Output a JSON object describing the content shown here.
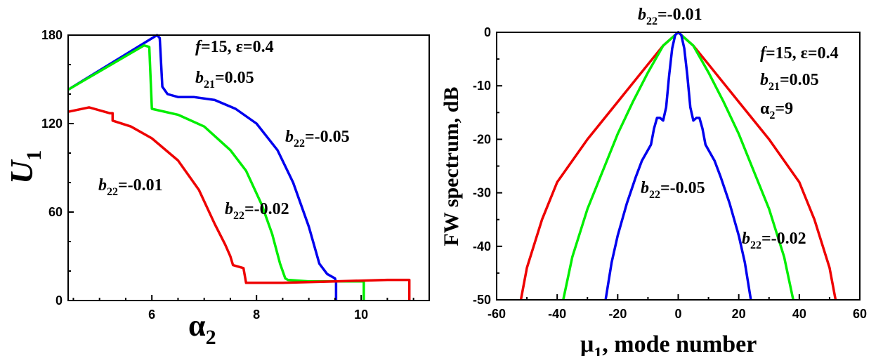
{
  "chart_data": [
    {
      "type": "line",
      "xlim": [
        4.4,
        11.3
      ],
      "ylim": [
        0,
        180
      ],
      "x_ticks": [
        6,
        8,
        10
      ],
      "y_ticks": [
        0,
        60,
        120,
        180
      ],
      "xlabel": "α₂",
      "ylabel": "U₁",
      "annotations": [
        "f=15, ε=0.4",
        "b21=0.05"
      ],
      "series": [
        {
          "name": "b22=-0.05",
          "color": "#0000ee",
          "x": [
            4.4,
            6.1,
            6.15,
            6.2,
            6.3,
            6.5,
            6.8,
            7.2,
            7.6,
            8.0,
            8.4,
            8.7,
            9.0,
            9.2,
            9.35,
            9.5,
            9.52,
            9.52
          ],
          "y": [
            143,
            180,
            178,
            145,
            140,
            138,
            138,
            136,
            130,
            120,
            102,
            80,
            50,
            25,
            18,
            15,
            12,
            0
          ]
        },
        {
          "name": "b22=-0.02",
          "color": "#00ee00",
          "x": [
            4.4,
            5.85,
            5.95,
            6.0,
            6.5,
            7.0,
            7.5,
            7.8,
            8.1,
            8.3,
            8.45,
            8.55,
            8.6,
            9.0,
            9.5,
            10.0,
            10.05,
            10.05
          ],
          "y": [
            143,
            173,
            172,
            130,
            126,
            118,
            102,
            88,
            65,
            45,
            25,
            15,
            14,
            13,
            13,
            13,
            13,
            0
          ]
        },
        {
          "name": "b22=-0.01",
          "color": "#ee0000",
          "x": [
            4.4,
            4.8,
            5.2,
            5.25,
            5.25,
            5.6,
            6.0,
            6.5,
            6.9,
            7.2,
            7.4,
            7.5,
            7.55,
            7.75,
            7.8,
            8.5,
            9.5,
            10.5,
            10.9,
            10.92,
            10.92
          ],
          "y": [
            128,
            131,
            127,
            127,
            122,
            118,
            110,
            95,
            75,
            52,
            38,
            30,
            24,
            22,
            12,
            12,
            13,
            14,
            14,
            14,
            0
          ]
        }
      ]
    },
    {
      "type": "line",
      "xlim": [
        -60,
        60
      ],
      "ylim": [
        -50,
        0
      ],
      "x_ticks": [
        -60,
        -40,
        -20,
        0,
        20,
        40,
        60
      ],
      "y_ticks": [
        0,
        -10,
        -20,
        -30,
        -40,
        -50
      ],
      "xlabel": "μ₁, mode number",
      "ylabel": "FW spectrum, dB",
      "annotations": [
        "b22=-0.01",
        "f=15, ε=0.4",
        "b21=0.05",
        "α2=9"
      ],
      "series": [
        {
          "name": "b22=-0.01",
          "color": "#ee0000",
          "x": [
            -52,
            -50,
            -45,
            -40,
            -30,
            -20,
            -10,
            -5,
            0,
            5,
            10,
            20,
            30,
            40,
            45,
            50,
            52
          ],
          "y": [
            -50,
            -44,
            -35,
            -28,
            -20,
            -13,
            -6,
            -2.5,
            0,
            -2.5,
            -6,
            -13,
            -20,
            -28,
            -35,
            -44,
            -50
          ]
        },
        {
          "name": "b22=-0.02",
          "color": "#00ee00",
          "x": [
            -38,
            -35,
            -30,
            -25,
            -20,
            -15,
            -10,
            -5,
            0,
            5,
            10,
            15,
            20,
            25,
            30,
            35,
            38
          ],
          "y": [
            -50,
            -42,
            -33,
            -26,
            -19,
            -13,
            -7.5,
            -2.5,
            0,
            -2.5,
            -7.5,
            -13,
            -19,
            -26,
            -33,
            -42,
            -50
          ]
        },
        {
          "name": "b22=-0.05",
          "color": "#0000ee",
          "x": [
            -24,
            -22,
            -20,
            -17,
            -14,
            -12,
            -9,
            -8,
            -7,
            -6,
            -5,
            -4,
            -3,
            -2,
            -1,
            0,
            1,
            2,
            3,
            4,
            5,
            6,
            7,
            8,
            9,
            12,
            14,
            17,
            20,
            22,
            24
          ],
          "y": [
            -50,
            -43,
            -38,
            -32,
            -27,
            -24,
            -21,
            -18,
            -16,
            -16,
            -16.5,
            -14,
            -8,
            -3,
            -0.5,
            0,
            -0.5,
            -3,
            -8,
            -14,
            -16.5,
            -16,
            -16,
            -18,
            -21,
            -24,
            -27,
            -32,
            -38,
            -43,
            -50
          ]
        }
      ]
    }
  ]
}
